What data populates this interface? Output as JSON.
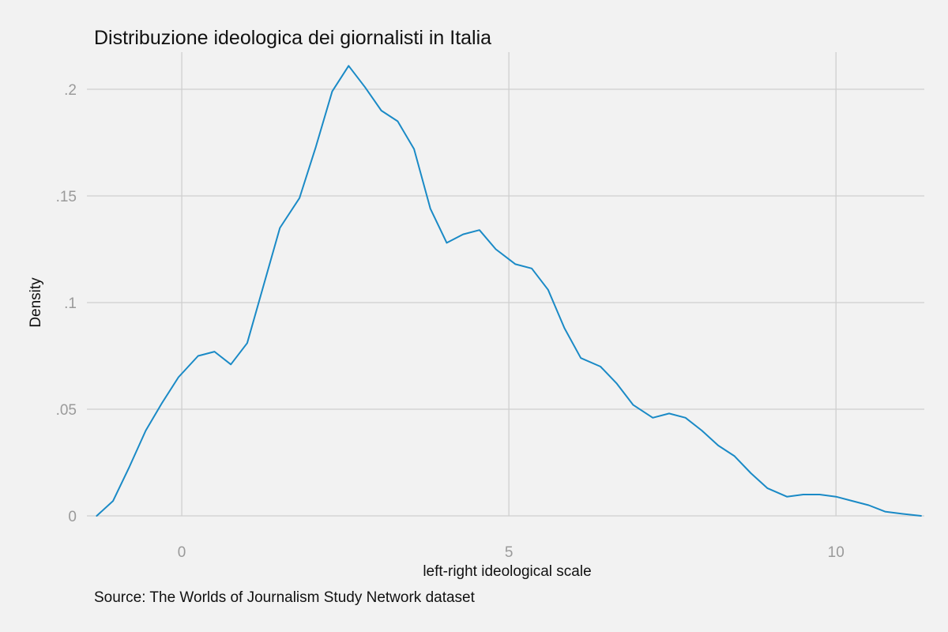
{
  "chart_data": {
    "type": "line",
    "title": "Distribuzione ideologica dei giornalisti in Italia",
    "xlabel": "left-right ideological scale",
    "ylabel": "Density",
    "note": "Source: The Worlds of Journalism Study Network dataset",
    "xlim": [
      -1.45,
      11.35
    ],
    "ylim": [
      0,
      0.2
    ],
    "x_ticks": [
      {
        "value": 0,
        "label": "0"
      },
      {
        "value": 5,
        "label": "5"
      },
      {
        "value": 10,
        "label": "10"
      }
    ],
    "y_ticks": [
      {
        "value": 0,
        "label": "0"
      },
      {
        "value": 0.05,
        "label": ".05"
      },
      {
        "value": 0.1,
        "label": ".1"
      },
      {
        "value": 0.15,
        "label": ".15"
      },
      {
        "value": 0.2,
        "label": ".2"
      }
    ],
    "grid": true,
    "legend": "none",
    "series_color": "#1a8ac6",
    "series": [
      {
        "x": [
          -1.3,
          -1.05,
          -0.8,
          -0.55,
          -0.3,
          -0.05,
          0.25,
          0.5,
          0.75,
          1.0,
          1.25,
          1.5,
          1.8,
          2.05,
          2.3,
          2.55,
          2.8,
          3.05,
          3.3,
          3.55,
          3.8,
          4.05,
          4.3,
          4.55,
          4.8,
          5.1,
          5.35,
          5.6,
          5.85,
          6.1,
          6.4,
          6.65,
          6.9,
          7.2,
          7.45,
          7.7,
          7.95,
          8.2,
          8.45,
          8.7,
          8.95,
          9.25,
          9.5,
          9.75,
          10.0,
          10.25,
          10.5,
          10.75,
          11.0,
          11.3
        ],
        "y": [
          0.0,
          0.007,
          0.023,
          0.04,
          0.053,
          0.065,
          0.075,
          0.077,
          0.071,
          0.081,
          0.108,
          0.135,
          0.149,
          0.173,
          0.199,
          0.211,
          0.201,
          0.19,
          0.185,
          0.172,
          0.144,
          0.128,
          0.132,
          0.134,
          0.125,
          0.118,
          0.116,
          0.106,
          0.088,
          0.074,
          0.07,
          0.062,
          0.052,
          0.046,
          0.048,
          0.046,
          0.04,
          0.033,
          0.028,
          0.02,
          0.013,
          0.009,
          0.01,
          0.01,
          0.009,
          0.007,
          0.005,
          0.002,
          0.001,
          0.0
        ]
      }
    ]
  }
}
